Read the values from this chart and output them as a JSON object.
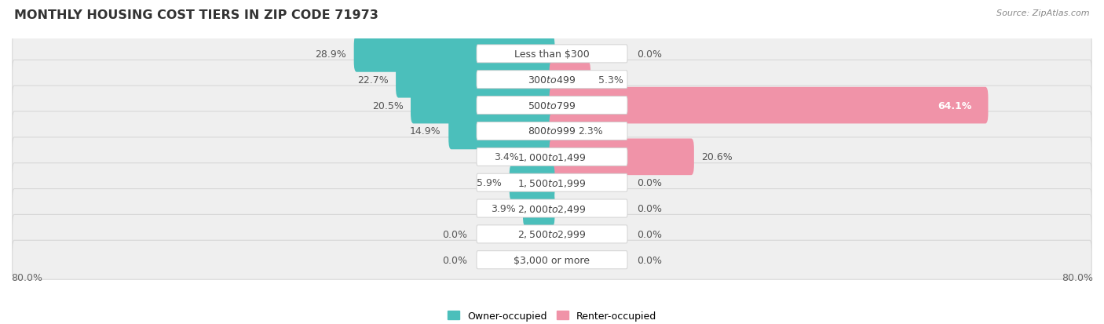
{
  "title": "MONTHLY HOUSING COST TIERS IN ZIP CODE 71973",
  "source": "Source: ZipAtlas.com",
  "categories": [
    "Less than $300",
    "$300 to $499",
    "$500 to $799",
    "$800 to $999",
    "$1,000 to $1,499",
    "$1,500 to $1,999",
    "$2,000 to $2,499",
    "$2,500 to $2,999",
    "$3,000 or more"
  ],
  "owner_values": [
    28.9,
    22.7,
    20.5,
    14.9,
    3.4,
    5.9,
    3.9,
    0.0,
    0.0
  ],
  "renter_values": [
    0.0,
    5.3,
    64.1,
    2.3,
    20.6,
    0.0,
    0.0,
    0.0,
    0.0
  ],
  "owner_color": "#4bbfbb",
  "renter_color": "#f093a8",
  "row_bg_color": "#efefef",
  "axis_limit": 80.0,
  "legend_owner": "Owner-occupied",
  "legend_renter": "Renter-occupied",
  "title_fontsize": 11.5,
  "source_fontsize": 8,
  "label_fontsize": 9,
  "category_fontsize": 9,
  "value_fontsize": 9
}
